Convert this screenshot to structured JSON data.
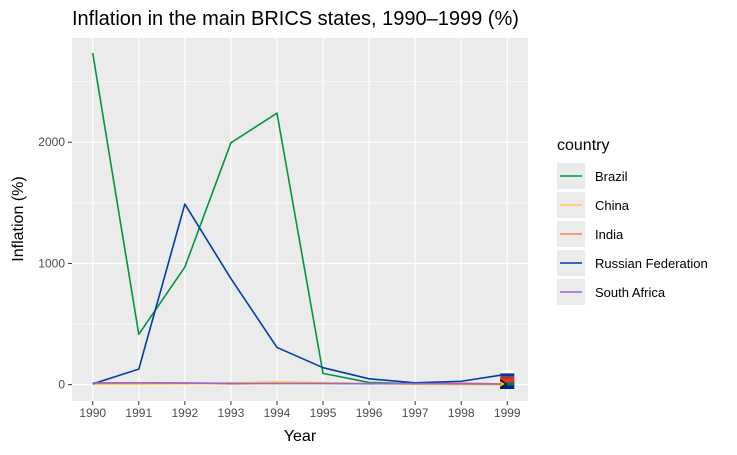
{
  "chart_data": {
    "type": "line",
    "title": "Inflation in the main BRICS states, 1990–1999 (%)",
    "xlabel": "Year",
    "ylabel": "Inflation (%)",
    "x": [
      1990,
      1991,
      1992,
      1993,
      1994,
      1995,
      1996,
      1997,
      1998,
      1999
    ],
    "x_tick_labels": [
      "1990",
      "1991",
      "1992",
      "1993",
      "1994",
      "1995",
      "1996",
      "1997",
      "1998",
      "1999"
    ],
    "y_ticks": [
      0,
      1000,
      2000
    ],
    "y_tick_labels": [
      "0",
      "1000",
      "2000"
    ],
    "xlim": [
      1989.55,
      1999.45
    ],
    "ylim": [
      -135,
      2860
    ],
    "grid": true,
    "legend": {
      "title": "country",
      "position": "right"
    },
    "series": [
      {
        "name": "Brazil",
        "color": "#009640",
        "values": [
          2735,
          415,
          970,
          1995,
          2240,
          93,
          18,
          8,
          3,
          5
        ]
      },
      {
        "name": "China",
        "color": "#ffcd57",
        "values": [
          3,
          4,
          6,
          15,
          24,
          17,
          8,
          3,
          -1,
          -1
        ]
      },
      {
        "name": "India",
        "color": "#ff7f50",
        "values": [
          11,
          14,
          12,
          6,
          10,
          10,
          9,
          7,
          13,
          5
        ]
      },
      {
        "name": "Russian Federation",
        "color": "#003da6",
        "values": [
          6,
          128,
          1490,
          875,
          307,
          140,
          48,
          15,
          28,
          86
        ]
      },
      {
        "name": "South Africa",
        "color": "#9966cc",
        "values": [
          14,
          15,
          14,
          10,
          9,
          9,
          7,
          9,
          7,
          5
        ]
      }
    ],
    "annotations": [
      {
        "type": "flag-icons",
        "x": 1999,
        "icons": [
          "flag-brazil",
          "flag-china",
          "flag-india",
          "flag-russia",
          "flag-south-africa"
        ]
      }
    ],
    "colors": {
      "panel_background": "#ebebeb",
      "grid_major": "#ffffff",
      "tick_text": "#4d4d4d"
    }
  }
}
